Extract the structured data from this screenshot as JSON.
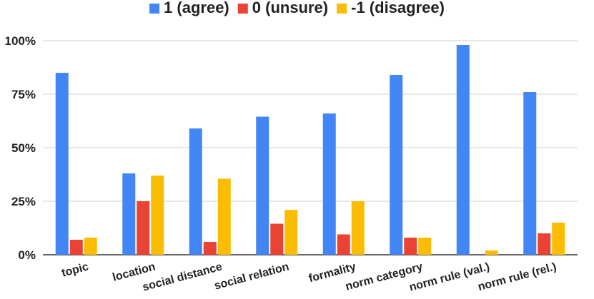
{
  "chart_data": {
    "type": "bar",
    "title": "",
    "xlabel": "",
    "ylabel": "",
    "ylim": [
      0,
      100
    ],
    "ytick_values": [
      0,
      25,
      50,
      75,
      100
    ],
    "ytick_labels": [
      "0%",
      "25%",
      "50%",
      "75%",
      "100%"
    ],
    "grid": true,
    "legend_position": "top-center",
    "categories": [
      "topic",
      "location",
      "social distance",
      "social relation",
      "formality",
      "norm category",
      "norm rule (val.)",
      "norm rule (rel.)"
    ],
    "series": [
      {
        "name": "1 (agree)",
        "color": "#4285f4",
        "values": [
          85,
          38,
          59,
          64.5,
          66,
          84,
          98,
          76
        ]
      },
      {
        "name": "0 (unsure)",
        "color": "#ea4335",
        "values": [
          7,
          25,
          6,
          14.5,
          9.5,
          8,
          0,
          10
        ]
      },
      {
        "name": "-1 (disagree)",
        "color": "#fbbc04",
        "values": [
          8,
          37,
          35.5,
          21,
          25,
          8,
          2,
          15
        ]
      }
    ]
  },
  "colors": {
    "grid": "#d0d0d0",
    "axis": "#333333",
    "text": "#222222"
  }
}
